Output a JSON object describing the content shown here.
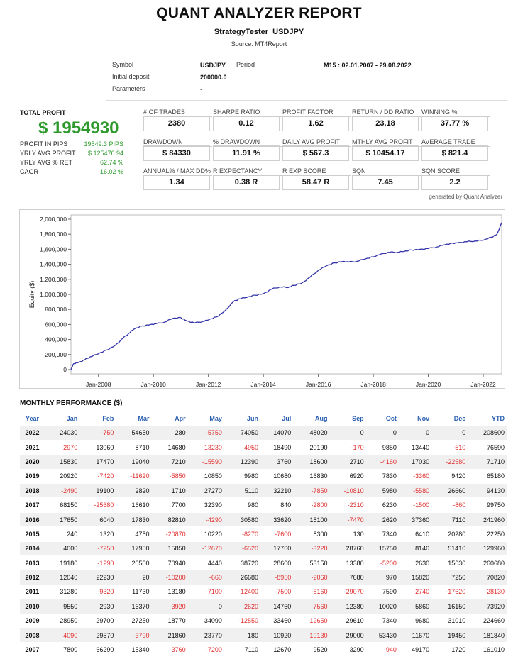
{
  "header": {
    "title": "QUANT ANALYZER REPORT",
    "strategy": "StrategyTester_USDJPY",
    "source": "Source: MT4Report"
  },
  "meta": {
    "symbol_label": "Symbol",
    "symbol_value": "USDJPY",
    "period_label": "Period",
    "period_value": "M15 : 02.01.2007 - 29.08.2022",
    "deposit_label": "Initial deposit",
    "deposit_value": "200000.0",
    "params_label": "Parameters",
    "params_value": "-"
  },
  "total_profit": {
    "label": "TOTAL PROFIT",
    "value": "$ 1954930",
    "rows": [
      {
        "label": "PROFIT IN PIPS",
        "value": "19549.3 PIPS"
      },
      {
        "label": "YRLY AVG PROFIT",
        "value": "$ 125476.94"
      },
      {
        "label": "YRLY AVG % RET",
        "value": "62.74 %"
      },
      {
        "label": "CAGR",
        "value": "16.02 %"
      }
    ]
  },
  "stats": [
    [
      {
        "label": "# OF TRADES",
        "value": "2380"
      },
      {
        "label": "SHARPE RATIO",
        "value": "0.12"
      },
      {
        "label": "PROFIT FACTOR",
        "value": "1.62"
      },
      {
        "label": "RETURN / DD RATIO",
        "value": "23.18"
      },
      {
        "label": "WINNING %",
        "value": "37.77 %"
      }
    ],
    [
      {
        "label": "DRAWDOWN",
        "value": "$ 84330"
      },
      {
        "label": "% DRAWDOWN",
        "value": "11.91 %"
      },
      {
        "label": "DAILY AVG PROFIT",
        "value": "$ 567.3"
      },
      {
        "label": "MTHLY AVG PROFIT",
        "value": "$ 10454.17"
      },
      {
        "label": "AVERAGE TRADE",
        "value": "$ 821.4"
      }
    ],
    [
      {
        "label": "ANNUAL% / MAX DD%",
        "value": "1.34"
      },
      {
        "label": "R EXPECTANCY",
        "value": "0.38 R"
      },
      {
        "label": "R EXP SCORE",
        "value": "58.47 R"
      },
      {
        "label": "SQN",
        "value": "7.45"
      },
      {
        "label": "SQN SCORE",
        "value": "2.2"
      }
    ]
  ],
  "generated_by": "generated by Quant Analyzer",
  "colors": {
    "profit_green": "#2e9a2e",
    "negative_red": "#e03030",
    "header_blue": "#2a5fb0",
    "equity_line": "#3333aa"
  },
  "chart_data": {
    "type": "line",
    "title": "",
    "xlabel": "",
    "ylabel": "Equity ($)",
    "ylim": [
      0,
      2000000
    ],
    "yticks": [
      0,
      200000,
      400000,
      600000,
      800000,
      1000000,
      1200000,
      1400000,
      1600000,
      1800000,
      2000000
    ],
    "ytick_labels": [
      "0",
      "200,000",
      "400,000",
      "600,000",
      "800,000",
      "1,000,000",
      "1,200,000",
      "1,400,000",
      "1,600,000",
      "1,800,000",
      "2,000,000"
    ],
    "xlim": [
      2007.0,
      2022.67
    ],
    "xticks": [
      2008,
      2010,
      2012,
      2014,
      2016,
      2018,
      2020,
      2022
    ],
    "xtick_labels": [
      "Jan-2008",
      "Jan-2010",
      "Jan-2012",
      "Jan-2014",
      "Jan-2016",
      "Jan-2018",
      "Jan-2020",
      "Jan-2022"
    ],
    "series": [
      {
        "name": "Equity",
        "x": [
          2007.0,
          2007.1,
          2007.3,
          2007.5,
          2007.7,
          2008.0,
          2008.3,
          2008.6,
          2008.9,
          2009.1,
          2009.3,
          2009.6,
          2009.9,
          2010.1,
          2010.4,
          2010.7,
          2011.0,
          2011.2,
          2011.5,
          2011.8,
          2012.0,
          2012.3,
          2012.6,
          2012.9,
          2013.1,
          2013.4,
          2013.7,
          2014.0,
          2014.3,
          2014.6,
          2014.9,
          2015.1,
          2015.4,
          2015.7,
          2016.0,
          2016.3,
          2016.6,
          2016.9,
          2017.1,
          2017.4,
          2017.7,
          2018.0,
          2018.3,
          2018.6,
          2018.9,
          2019.1,
          2019.4,
          2019.7,
          2020.0,
          2020.3,
          2020.6,
          2020.9,
          2021.1,
          2021.4,
          2021.7,
          2022.0,
          2022.3,
          2022.5,
          2022.67
        ],
        "y": [
          0,
          80000,
          100000,
          130000,
          170000,
          210000,
          260000,
          320000,
          420000,
          480000,
          540000,
          580000,
          600000,
          610000,
          630000,
          680000,
          690000,
          650000,
          620000,
          640000,
          660000,
          700000,
          780000,
          900000,
          940000,
          960000,
          990000,
          1010000,
          1070000,
          1100000,
          1090000,
          1120000,
          1150000,
          1230000,
          1320000,
          1380000,
          1420000,
          1440000,
          1430000,
          1440000,
          1470000,
          1500000,
          1540000,
          1560000,
          1560000,
          1570000,
          1590000,
          1600000,
          1610000,
          1630000,
          1660000,
          1680000,
          1690000,
          1700000,
          1710000,
          1720000,
          1760000,
          1800000,
          1955000
        ]
      }
    ]
  },
  "monthly": {
    "title": "MONTHLY PERFORMANCE ($)",
    "headers": [
      "Year",
      "Jan",
      "Feb",
      "Mar",
      "Apr",
      "May",
      "Jun",
      "Jul",
      "Aug",
      "Sep",
      "Oct",
      "Nov",
      "Dec",
      "YTD"
    ],
    "rows": [
      [
        "2022",
        "24030",
        "-750",
        "54650",
        "280",
        "-5750",
        "74050",
        "14070",
        "48020",
        "0",
        "0",
        "0",
        "0",
        "208600"
      ],
      [
        "2021",
        "-2970",
        "13060",
        "8710",
        "14680",
        "-13230",
        "-4950",
        "18490",
        "20190",
        "-170",
        "9850",
        "13440",
        "-510",
        "76590"
      ],
      [
        "2020",
        "15830",
        "17470",
        "19040",
        "7210",
        "-15590",
        "12390",
        "3760",
        "18600",
        "2710",
        "-4160",
        "17030",
        "-22580",
        "71710"
      ],
      [
        "2019",
        "20920",
        "-7420",
        "-11620",
        "-5850",
        "10850",
        "9980",
        "10680",
        "16830",
        "6920",
        "7830",
        "-3360",
        "9420",
        "65180"
      ],
      [
        "2018",
        "-2490",
        "19100",
        "2820",
        "1710",
        "27270",
        "5110",
        "32210",
        "-7850",
        "-10810",
        "5980",
        "-5580",
        "26660",
        "94130"
      ],
      [
        "2017",
        "68150",
        "-25680",
        "16610",
        "7700",
        "32390",
        "980",
        "840",
        "-2800",
        "-2310",
        "6230",
        "-1500",
        "-860",
        "99750"
      ],
      [
        "2016",
        "17650",
        "6040",
        "17830",
        "82810",
        "-4290",
        "30580",
        "33620",
        "18100",
        "-7470",
        "2620",
        "37360",
        "7110",
        "241960"
      ],
      [
        "2015",
        "240",
        "1320",
        "4750",
        "-20870",
        "10220",
        "-8270",
        "-7600",
        "8300",
        "130",
        "7340",
        "6410",
        "20280",
        "22250"
      ],
      [
        "2014",
        "4000",
        "-7250",
        "17950",
        "15850",
        "-12670",
        "-6520",
        "17760",
        "-3220",
        "28760",
        "15750",
        "8140",
        "51410",
        "129960"
      ],
      [
        "2013",
        "19180",
        "-1290",
        "20500",
        "70940",
        "4440",
        "38720",
        "28600",
        "53150",
        "13380",
        "-5200",
        "2630",
        "15630",
        "260680"
      ],
      [
        "2012",
        "12040",
        "22230",
        "20",
        "-10200",
        "-660",
        "26680",
        "-8950",
        "-2060",
        "7680",
        "970",
        "15820",
        "7250",
        "70820"
      ],
      [
        "2011",
        "31280",
        "-9320",
        "11730",
        "13180",
        "-7100",
        "-12400",
        "-7500",
        "-6160",
        "-29070",
        "7590",
        "-2740",
        "-17620",
        "-28130"
      ],
      [
        "2010",
        "9550",
        "2930",
        "16370",
        "-3920",
        "0",
        "-2620",
        "14760",
        "-7560",
        "12380",
        "10020",
        "5860",
        "16150",
        "73920"
      ],
      [
        "2009",
        "28950",
        "29700",
        "27250",
        "18770",
        "34090",
        "-12550",
        "33460",
        "-12650",
        "29610",
        "7340",
        "9680",
        "31010",
        "224660"
      ],
      [
        "2008",
        "-4090",
        "29570",
        "-3790",
        "21860",
        "23770",
        "180",
        "10920",
        "-10130",
        "29000",
        "53430",
        "11670",
        "19450",
        "181840"
      ],
      [
        "2007",
        "7800",
        "66290",
        "15340",
        "-3760",
        "-7200",
        "7110",
        "12670",
        "9520",
        "3290",
        "-940",
        "49170",
        "1720",
        "161010"
      ]
    ]
  }
}
